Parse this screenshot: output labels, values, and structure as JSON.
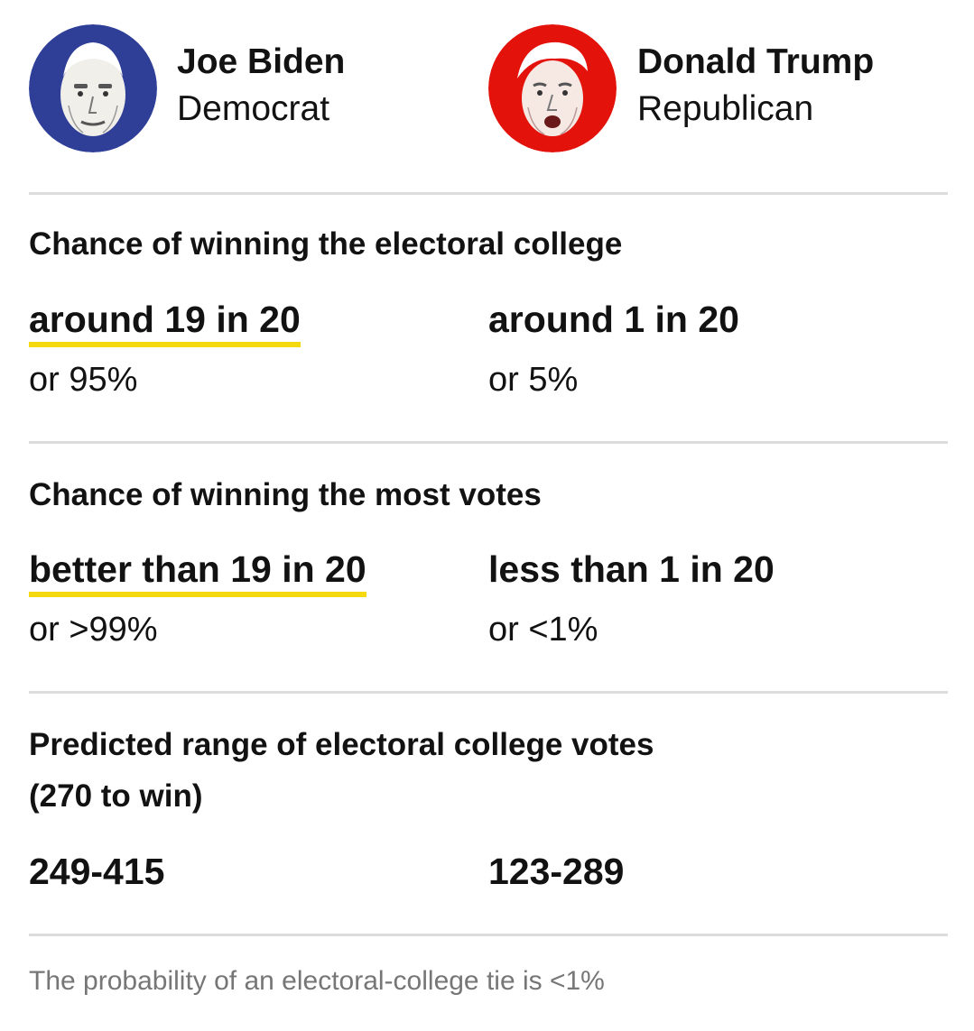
{
  "candidates": {
    "dem": {
      "name": "Joe Biden",
      "party": "Democrat",
      "portrait_icon": "biden-portrait",
      "color": "#2f3f98"
    },
    "rep": {
      "name": "Donald Trump",
      "party": "Republican",
      "portrait_icon": "trump-portrait",
      "color": "#e3120b"
    }
  },
  "electoral_college": {
    "title": "Chance of winning the electoral college",
    "dem_odds": "around 19 in 20",
    "dem_pct": "or 95%",
    "rep_odds": "around 1 in 20",
    "rep_pct": "or 5%"
  },
  "popular_vote": {
    "title": "Chance of winning the most votes",
    "dem_odds": "better than 19 in 20",
    "dem_pct": "or >99%",
    "rep_odds": "less than 1 in 20",
    "rep_pct": "or <1%"
  },
  "ec_range": {
    "title": "Predicted range of electoral college votes",
    "subtitle": "(270 to win)",
    "dem_range": "249-415",
    "rep_range": "123-289"
  },
  "footnote": "The probability of an electoral-college tie is <1%",
  "colors": {
    "highlight": "#f5d90f",
    "rule": "#dcdcdc",
    "footnote": "#767676"
  }
}
